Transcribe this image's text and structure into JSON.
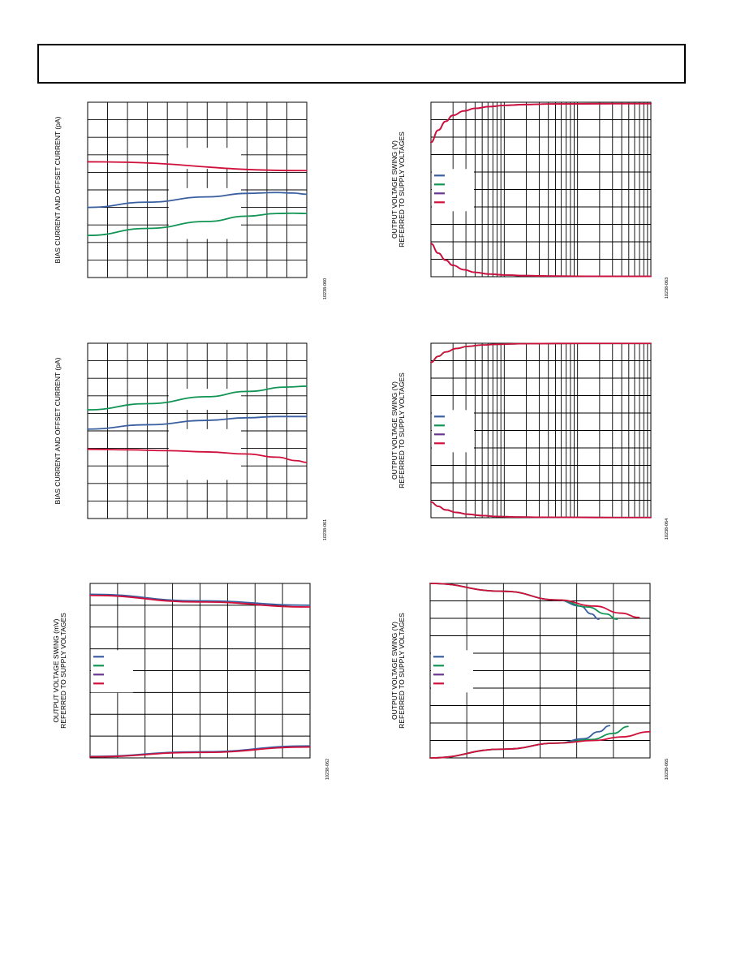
{
  "colors": {
    "red": "#d0103a",
    "blue": "#3a5fa0",
    "green": "#129455",
    "purple": "#6a3590"
  },
  "chart_data": [
    {
      "id": "c1",
      "type": "line",
      "ylabel": [
        "BIAS CURRENT AND OFFSET CURRENT (pA)"
      ],
      "fignum": "10238-060",
      "xlim": [
        0,
        11
      ],
      "ylim": [
        0,
        10
      ],
      "xgrid": "linear",
      "xdiv": 11,
      "ydiv": 10,
      "legend_lines": 0,
      "series": [
        {
          "color": "red",
          "x": [
            0,
            11
          ],
          "y": [
            6.6,
            6.1
          ]
        },
        {
          "color": "blue",
          "x": [
            0,
            3,
            6,
            8,
            9.5,
            10.3,
            11
          ],
          "y": [
            4.0,
            4.3,
            4.6,
            4.8,
            4.85,
            4.82,
            4.75
          ]
        },
        {
          "color": "green",
          "x": [
            0,
            3,
            6,
            8,
            9.5,
            10.3,
            11
          ],
          "y": [
            2.4,
            2.8,
            3.2,
            3.5,
            3.65,
            3.67,
            3.65
          ]
        }
      ]
    },
    {
      "id": "c2",
      "type": "line",
      "ylabel": [
        "OUTPUT VOLTAGE SWING (V)",
        "REFERRED TO SUPPLY VOLTAGES"
      ],
      "fignum": "10238-063",
      "xlim": [
        0,
        3
      ],
      "ylim": [
        0,
        10
      ],
      "xgrid": "log",
      "xdecades": 3,
      "ydiv": 10,
      "legend_lines": 4,
      "series": [
        {
          "color": "purple",
          "x": [
            0,
            0.1,
            0.2,
            0.3,
            0.45,
            0.6,
            0.8,
            1.0,
            1.3,
            1.6,
            2.0,
            2.5,
            3.0
          ],
          "y": [
            7.7,
            8.4,
            8.9,
            9.25,
            9.5,
            9.65,
            9.75,
            9.82,
            9.87,
            9.9,
            9.91,
            9.92,
            9.92
          ]
        },
        {
          "color": "red",
          "x": [
            0,
            0.1,
            0.2,
            0.3,
            0.45,
            0.6,
            0.8,
            1.0,
            1.3,
            1.6,
            2.0,
            2.5,
            3.0
          ],
          "y": [
            7.7,
            8.4,
            8.9,
            9.25,
            9.5,
            9.65,
            9.75,
            9.82,
            9.87,
            9.9,
            9.91,
            9.92,
            9.92
          ]
        },
        {
          "color": "purple",
          "x": [
            0,
            0.1,
            0.2,
            0.3,
            0.45,
            0.6,
            0.8,
            1.0,
            1.3,
            1.6,
            2.0,
            2.5,
            3.0
          ],
          "y": [
            1.9,
            1.35,
            0.95,
            0.65,
            0.4,
            0.25,
            0.15,
            0.1,
            0.06,
            0.04,
            0.03,
            0.02,
            0.02
          ]
        },
        {
          "color": "red",
          "x": [
            0,
            0.1,
            0.2,
            0.3,
            0.45,
            0.6,
            0.8,
            1.0,
            1.3,
            1.6,
            2.0,
            2.5,
            3.0
          ],
          "y": [
            1.9,
            1.35,
            0.95,
            0.65,
            0.4,
            0.25,
            0.15,
            0.1,
            0.06,
            0.04,
            0.03,
            0.02,
            0.02
          ]
        }
      ]
    },
    {
      "id": "c3",
      "type": "line",
      "ylabel": [
        "BIAS CURRENT AND OFFSET CURRENT (pA)"
      ],
      "fignum": "10238-061",
      "xlim": [
        0,
        11
      ],
      "ylim": [
        0,
        10
      ],
      "xgrid": "linear",
      "xdiv": 11,
      "ydiv": 10,
      "legend_lines": 0,
      "series": [
        {
          "color": "green",
          "x": [
            0,
            3,
            6,
            8,
            10,
            11
          ],
          "y": [
            6.2,
            6.55,
            6.95,
            7.25,
            7.5,
            7.55
          ]
        },
        {
          "color": "blue",
          "x": [
            0,
            3,
            6,
            8,
            9.5,
            10.3,
            11
          ],
          "y": [
            5.1,
            5.35,
            5.6,
            5.75,
            5.82,
            5.82,
            5.82
          ]
        },
        {
          "color": "red",
          "x": [
            0,
            2,
            4,
            6,
            8,
            9.5,
            10.5,
            11
          ],
          "y": [
            3.95,
            3.92,
            3.87,
            3.8,
            3.68,
            3.5,
            3.3,
            3.2
          ]
        }
      ]
    },
    {
      "id": "c4",
      "type": "line",
      "ylabel": [
        "OUTPUT VOLTAGE SWING (V)",
        "REFERRED TO SUPPLY VOLTAGES"
      ],
      "fignum": "10238-064",
      "xlim": [
        0,
        3
      ],
      "ylim": [
        0,
        10
      ],
      "xgrid": "log",
      "xdecades": 3,
      "ydiv": 10,
      "legend_lines": 4,
      "series": [
        {
          "color": "green",
          "x": [
            0,
            0.1,
            0.2,
            0.35,
            0.5,
            0.7,
            0.9,
            1.2,
            1.5,
            2.0,
            2.5,
            3.0
          ],
          "y": [
            8.9,
            9.25,
            9.5,
            9.7,
            9.82,
            9.9,
            9.94,
            9.97,
            9.98,
            9.99,
            9.99,
            9.99
          ]
        },
        {
          "color": "red",
          "x": [
            0,
            0.1,
            0.2,
            0.35,
            0.5,
            0.7,
            0.9,
            1.2,
            1.5,
            2.0,
            2.5,
            3.0
          ],
          "y": [
            8.9,
            9.25,
            9.5,
            9.7,
            9.82,
            9.9,
            9.94,
            9.97,
            9.98,
            9.99,
            9.99,
            9.99
          ]
        },
        {
          "color": "blue",
          "x": [
            0,
            0.1,
            0.2,
            0.35,
            0.5,
            0.7,
            0.9,
            1.2,
            1.5,
            2.0,
            2.5,
            3.0
          ],
          "y": [
            0.9,
            0.65,
            0.45,
            0.3,
            0.2,
            0.12,
            0.07,
            0.04,
            0.03,
            0.02,
            0.01,
            0.01
          ]
        },
        {
          "color": "red",
          "x": [
            0,
            0.1,
            0.2,
            0.35,
            0.5,
            0.7,
            0.9,
            1.2,
            1.5,
            2.0,
            2.5,
            3.0
          ],
          "y": [
            0.9,
            0.65,
            0.45,
            0.3,
            0.2,
            0.12,
            0.07,
            0.04,
            0.03,
            0.02,
            0.01,
            0.01
          ]
        }
      ]
    },
    {
      "id": "c5",
      "type": "line",
      "ylabel": [
        "OUTPUT VOLTAGE SWING (mV)",
        "REFERRED TO SUPPLY VOLTAGES"
      ],
      "fignum": "10238-062",
      "xlim": [
        0,
        8
      ],
      "ylim": [
        0,
        8
      ],
      "xgrid": "linear",
      "xdiv": 8,
      "ydiv": 8,
      "legend_lines": 4,
      "series": [
        {
          "color": "blue",
          "x": [
            0,
            4,
            8
          ],
          "y": [
            7.5,
            7.2,
            7.0
          ]
        },
        {
          "color": "red",
          "x": [
            0,
            4,
            8
          ],
          "y": [
            7.45,
            7.15,
            6.92
          ]
        },
        {
          "color": "blue",
          "x": [
            0,
            4,
            8
          ],
          "y": [
            0.07,
            0.28,
            0.55
          ]
        },
        {
          "color": "red",
          "x": [
            0,
            4,
            8
          ],
          "y": [
            0.05,
            0.25,
            0.5
          ]
        }
      ]
    },
    {
      "id": "c6",
      "type": "line",
      "ylabel": [
        "OUTPUT VOLTAGE SWING (V)",
        "REFERRED TO SUPPLY VOLTAGES"
      ],
      "fignum": "10238-065",
      "xlim": [
        0,
        6
      ],
      "ylim": [
        0,
        10
      ],
      "xgrid": "linear",
      "xdiv": 6,
      "ydiv": 10,
      "legend_lines": 4,
      "series": [
        {
          "color": "blue",
          "x": [
            0,
            2,
            3.5,
            4.1,
            4.4,
            4.6
          ],
          "y": [
            10,
            9.55,
            9.05,
            8.7,
            8.25,
            7.95
          ]
        },
        {
          "color": "green",
          "x": [
            0,
            2,
            3.5,
            4.3,
            4.8,
            5.1
          ],
          "y": [
            10,
            9.55,
            9.05,
            8.65,
            8.25,
            7.95
          ]
        },
        {
          "color": "red",
          "x": [
            0,
            2,
            3.5,
            4.5,
            5.2,
            5.7
          ],
          "y": [
            10,
            9.55,
            9.05,
            8.7,
            8.3,
            8.05
          ]
        },
        {
          "color": "blue",
          "x": [
            0,
            2,
            3.5,
            4.2,
            4.6,
            4.9
          ],
          "y": [
            0,
            0.5,
            0.85,
            1.1,
            1.5,
            1.85
          ]
        },
        {
          "color": "green",
          "x": [
            0,
            2,
            3.5,
            4.4,
            5.0,
            5.4
          ],
          "y": [
            0,
            0.5,
            0.85,
            1.05,
            1.4,
            1.8
          ]
        },
        {
          "color": "red",
          "x": [
            0,
            2,
            3.5,
            4.5,
            5.2,
            6.0
          ],
          "y": [
            0,
            0.5,
            0.85,
            1.0,
            1.2,
            1.5
          ]
        }
      ]
    }
  ]
}
